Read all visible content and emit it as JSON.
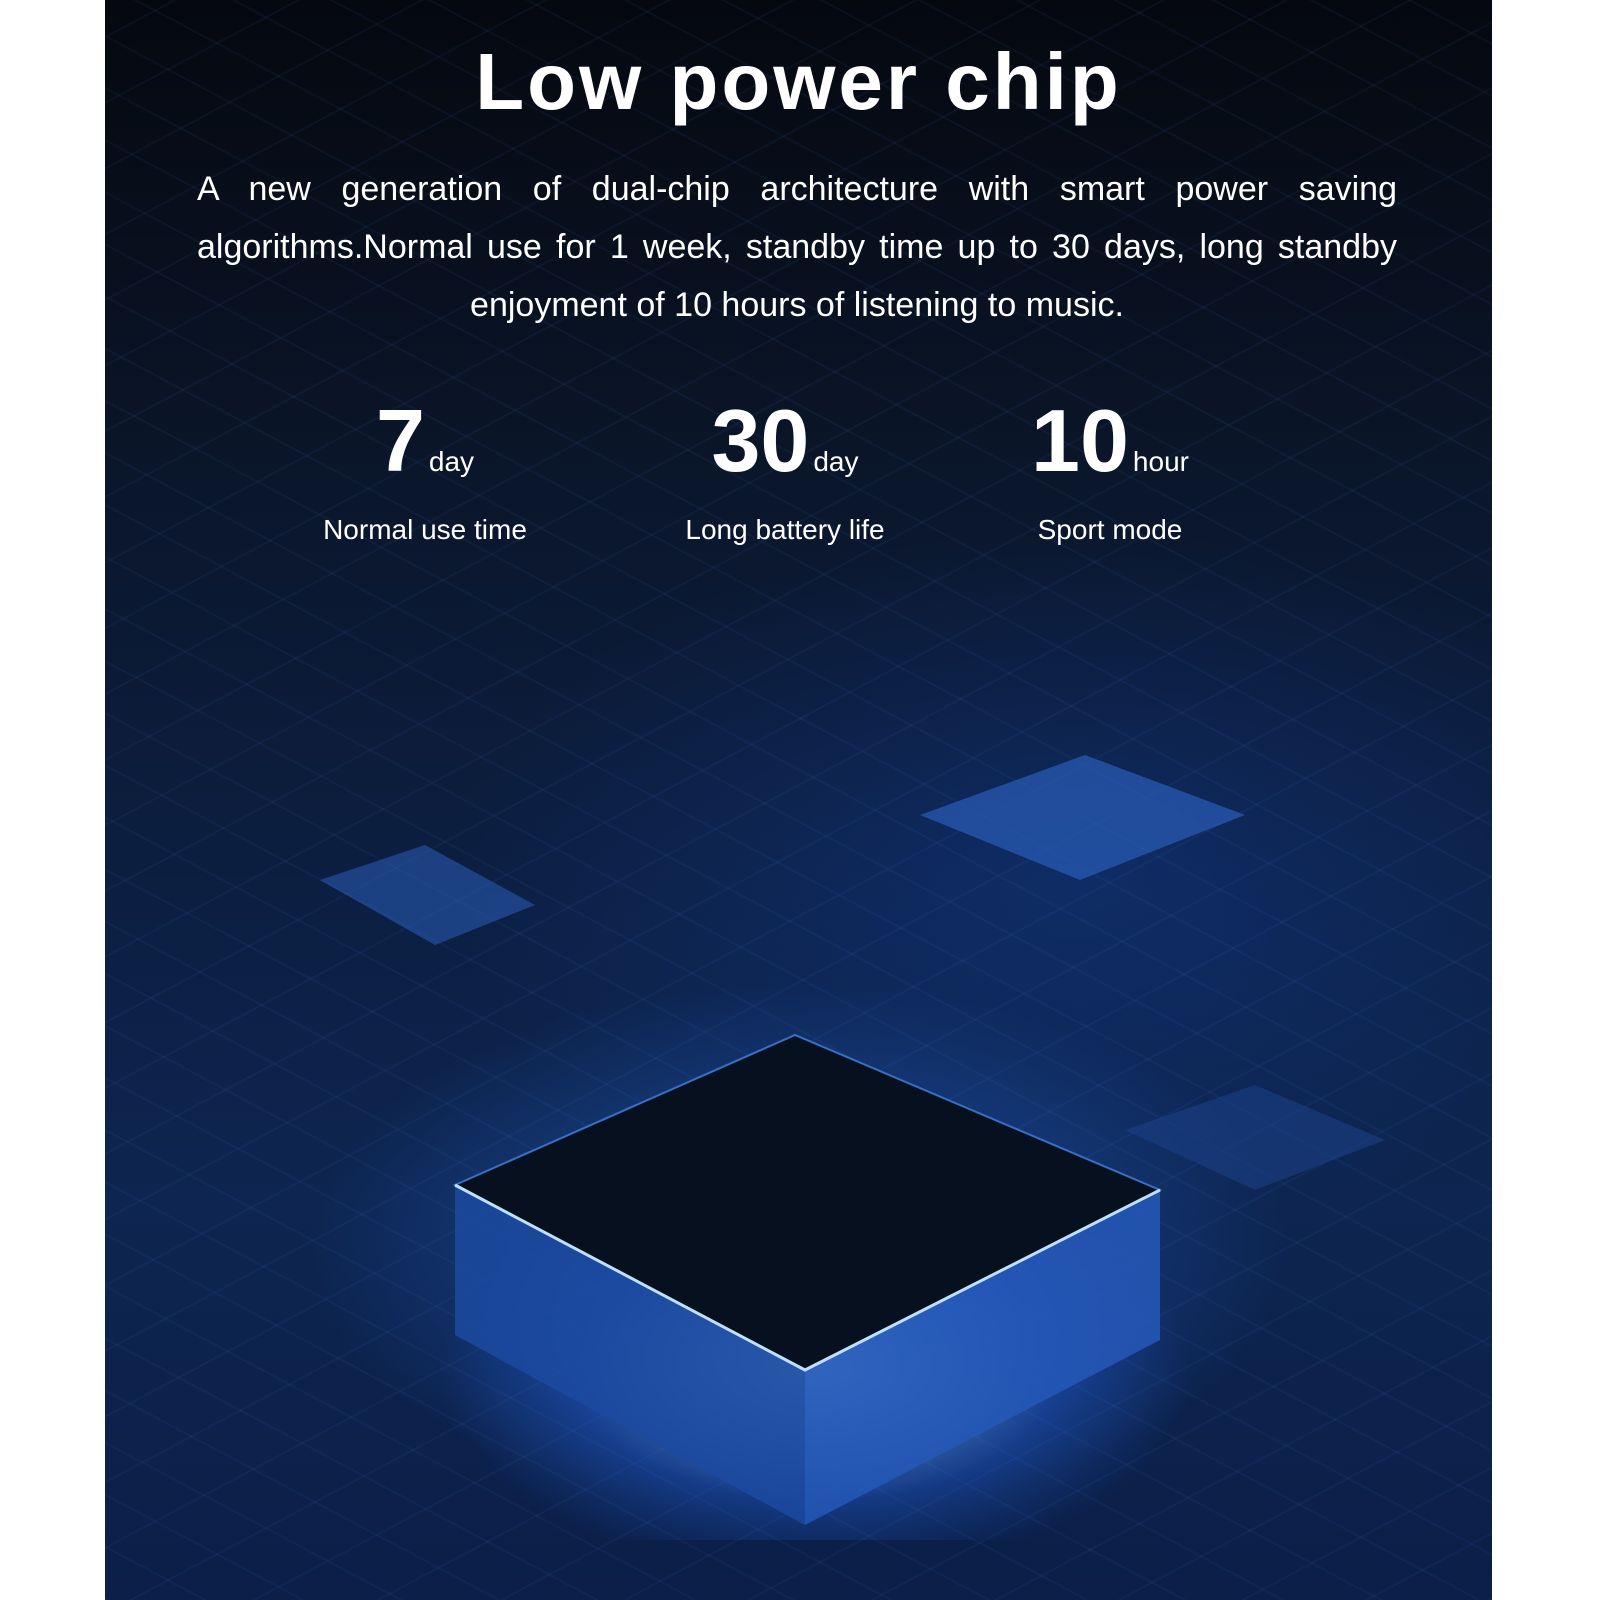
{
  "title": "Low power chip",
  "description": "A new generation of dual-chip architecture with smart power saving algorithms.Normal use for 1 week, standby time up to 30 days, long standby enjoyment of 10 hours of listening to music.",
  "stats": [
    {
      "value": "7",
      "unit": "day",
      "label": "Normal use time"
    },
    {
      "value": "30",
      "unit": "day",
      "label": "Long battery life"
    },
    {
      "value": "10",
      "unit": "hour",
      "label": "Sport mode"
    }
  ],
  "colors": {
    "background": "#0c1d3d",
    "accent": "#2a6fe6",
    "text": "#ffffff"
  }
}
